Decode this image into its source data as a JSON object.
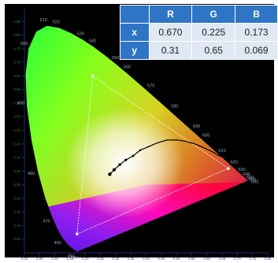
{
  "chart_data": {
    "type": "scatter",
    "title": "",
    "xlabel": "",
    "ylabel": "",
    "xlim": [
      0,
      0.8
    ],
    "ylim": [
      0,
      0.9
    ],
    "x_ticks": [
      "0.00",
      "0.05",
      "0.10",
      "0.15",
      "0.20",
      "0.25",
      "0.30",
      "0.35",
      "0.40",
      "0.45",
      "0.50",
      "0.55",
      "0.60",
      "0.65",
      "0.70",
      "0.75",
      "0.80"
    ],
    "y_ticks": [
      "0.05",
      "0.10",
      "0.15",
      "0.20",
      "0.25",
      "0.30",
      "0.35",
      "0.40",
      "0.45",
      "0.50",
      "0.55",
      "0.60",
      "0.65",
      "0.70",
      "0.75",
      "0.80",
      "0.85"
    ],
    "spectral_locus": [
      {
        "nm": "380",
        "x": 0.1741,
        "y": 0.005
      },
      {
        "nm": "",
        "x": 0.1738,
        "y": 0.0049
      },
      {
        "nm": "",
        "x": 0.173,
        "y": 0.0048
      },
      {
        "nm": "440",
        "x": 0.1644,
        "y": 0.0109
      },
      {
        "nm": "",
        "x": 0.1566,
        "y": 0.0177
      },
      {
        "nm": "",
        "x": 0.144,
        "y": 0.0297
      },
      {
        "nm": "460",
        "x": 0.1241,
        "y": 0.0578
      },
      {
        "nm": "",
        "x": 0.1096,
        "y": 0.0868
      },
      {
        "nm": "470",
        "x": 0.0913,
        "y": 0.1327
      },
      {
        "nm": "",
        "x": 0.0687,
        "y": 0.2007
      },
      {
        "nm": "480",
        "x": 0.0454,
        "y": 0.295
      },
      {
        "nm": "",
        "x": 0.0235,
        "y": 0.4127
      },
      {
        "nm": "490",
        "x": 0.0082,
        "y": 0.5384
      },
      {
        "nm": "",
        "x": 0.0039,
        "y": 0.6548
      },
      {
        "nm": "500",
        "x": 0.0139,
        "y": 0.7502
      },
      {
        "nm": "",
        "x": 0.0389,
        "y": 0.812
      },
      {
        "nm": "510",
        "x": 0.0743,
        "y": 0.8338
      },
      {
        "nm": "520",
        "x": 0.1142,
        "y": 0.8262
      },
      {
        "nm": "",
        "x": 0.1547,
        "y": 0.8059
      },
      {
        "nm": "530",
        "x": 0.1929,
        "y": 0.7816
      },
      {
        "nm": "540",
        "x": 0.2296,
        "y": 0.7543
      },
      {
        "nm": "",
        "x": 0.2658,
        "y": 0.7243
      },
      {
        "nm": "550",
        "x": 0.3016,
        "y": 0.6923
      },
      {
        "nm": "560",
        "x": 0.3373,
        "y": 0.6589
      },
      {
        "nm": "",
        "x": 0.3731,
        "y": 0.6245
      },
      {
        "nm": "570",
        "x": 0.4087,
        "y": 0.5896
      },
      {
        "nm": "",
        "x": 0.4441,
        "y": 0.5547
      },
      {
        "nm": "580",
        "x": 0.4788,
        "y": 0.5202
      },
      {
        "nm": "",
        "x": 0.5125,
        "y": 0.4866
      },
      {
        "nm": "590",
        "x": 0.5448,
        "y": 0.4544
      },
      {
        "nm": "600",
        "x": 0.5752,
        "y": 0.4242
      },
      {
        "nm": "",
        "x": 0.6029,
        "y": 0.3965
      },
      {
        "nm": "610",
        "x": 0.627,
        "y": 0.3725
      },
      {
        "nm": "620",
        "x": 0.6658,
        "y": 0.334
      },
      {
        "nm": "630",
        "x": 0.6915,
        "y": 0.3083
      },
      {
        "nm": "640",
        "x": 0.7079,
        "y": 0.292
      },
      {
        "nm": "650",
        "x": 0.719,
        "y": 0.2809
      },
      {
        "nm": "660",
        "x": 0.726,
        "y": 0.274
      },
      {
        "nm": "680",
        "x": 0.7347,
        "y": 0.2653
      }
    ],
    "wavelength_labels": [
      "520",
      "530",
      "540",
      "550",
      "560",
      "570",
      "580",
      "590",
      "600",
      "610",
      "620",
      "630",
      "640",
      "650",
      "680",
      "490",
      "480",
      "470",
      "460",
      "440",
      "380"
    ],
    "gamut_triangle": {
      "R": {
        "x": 0.67,
        "y": 0.31
      },
      "G": {
        "x": 0.225,
        "y": 0.65
      },
      "B": {
        "x": 0.173,
        "y": 0.069
      }
    },
    "planckian_locus": [
      {
        "x": 0.2806,
        "y": 0.2883
      },
      {
        "x": 0.2951,
        "y": 0.305
      },
      {
        "x": 0.3135,
        "y": 0.3236
      },
      {
        "x": 0.3333,
        "y": 0.341
      },
      {
        "x": 0.3571,
        "y": 0.356
      },
      {
        "x": 0.3805,
        "y": 0.3768
      },
      {
        "x": 0.4082,
        "y": 0.3901
      },
      {
        "x": 0.4369,
        "y": 0.4041
      },
      {
        "x": 0.468,
        "y": 0.414
      },
      {
        "x": 0.5014,
        "y": 0.4146
      },
      {
        "x": 0.53,
        "y": 0.4098
      },
      {
        "x": 0.56,
        "y": 0.4
      },
      {
        "x": 0.59,
        "y": 0.386
      },
      {
        "x": 0.62,
        "y": 0.37
      },
      {
        "x": 0.645,
        "y": 0.353
      }
    ],
    "grid": false,
    "colors": {
      "background": "#000000",
      "axis": "#1f2d70",
      "triangle": "#ffffff",
      "locus": "#000000"
    }
  },
  "table": {
    "headers": [
      "",
      "R",
      "G",
      "B"
    ],
    "rows": [
      {
        "label": "x",
        "values": [
          "0.670",
          "0.225",
          "0.173"
        ]
      },
      {
        "label": "y",
        "values": [
          "0.31",
          "0.65",
          "0.069"
        ]
      }
    ]
  }
}
